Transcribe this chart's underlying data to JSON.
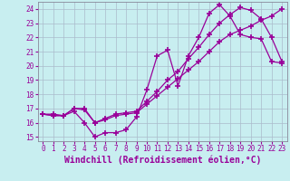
{
  "xlabel": "Windchill (Refroidissement éolien,°C)",
  "bg_color": "#c8eef0",
  "line_color": "#990099",
  "grid_color": "#aabbcc",
  "xlim": [
    -0.5,
    23.5
  ],
  "ylim": [
    14.7,
    24.5
  ],
  "xticks": [
    0,
    1,
    2,
    3,
    4,
    5,
    6,
    7,
    8,
    9,
    10,
    11,
    12,
    13,
    14,
    15,
    16,
    17,
    18,
    19,
    20,
    21,
    22,
    23
  ],
  "yticks": [
    15,
    16,
    17,
    18,
    19,
    20,
    21,
    22,
    23,
    24
  ],
  "series1_x": [
    0,
    1,
    2,
    3,
    4,
    5,
    6,
    7,
    8,
    9,
    10,
    11,
    12,
    13,
    14,
    15,
    16,
    17,
    18,
    19,
    20,
    21,
    22,
    23
  ],
  "series1_y": [
    16.6,
    16.6,
    16.5,
    16.8,
    16.0,
    15.0,
    15.3,
    15.3,
    15.5,
    16.4,
    18.3,
    20.7,
    21.1,
    18.6,
    20.7,
    22.0,
    23.7,
    24.3,
    23.5,
    22.2,
    22.0,
    21.9,
    20.3,
    20.2
  ],
  "series2_x": [
    0,
    1,
    2,
    3,
    4,
    5,
    6,
    7,
    8,
    9,
    10,
    11,
    12,
    13,
    14,
    15,
    16,
    17,
    18,
    19,
    20,
    21,
    22,
    23
  ],
  "series2_y": [
    16.6,
    16.5,
    16.5,
    17.0,
    16.9,
    16.0,
    16.2,
    16.5,
    16.6,
    16.7,
    17.3,
    17.9,
    18.5,
    19.1,
    19.7,
    20.3,
    21.0,
    21.7,
    22.2,
    22.5,
    22.8,
    23.2,
    23.5,
    24.0
  ],
  "series3_x": [
    0,
    1,
    2,
    3,
    4,
    5,
    6,
    7,
    8,
    9,
    10,
    11,
    12,
    13,
    14,
    15,
    16,
    17,
    18,
    19,
    20,
    21,
    22,
    23
  ],
  "series3_y": [
    16.6,
    16.5,
    16.5,
    17.0,
    17.0,
    16.0,
    16.3,
    16.6,
    16.7,
    16.8,
    17.5,
    18.2,
    19.0,
    19.6,
    20.5,
    21.3,
    22.2,
    23.0,
    23.6,
    24.1,
    23.9,
    23.3,
    22.0,
    20.3
  ],
  "marker": "+",
  "markersize": 4,
  "markeredgewidth": 1.2,
  "linewidth": 0.9,
  "tick_fontsize": 5.5,
  "label_fontsize": 7.0
}
